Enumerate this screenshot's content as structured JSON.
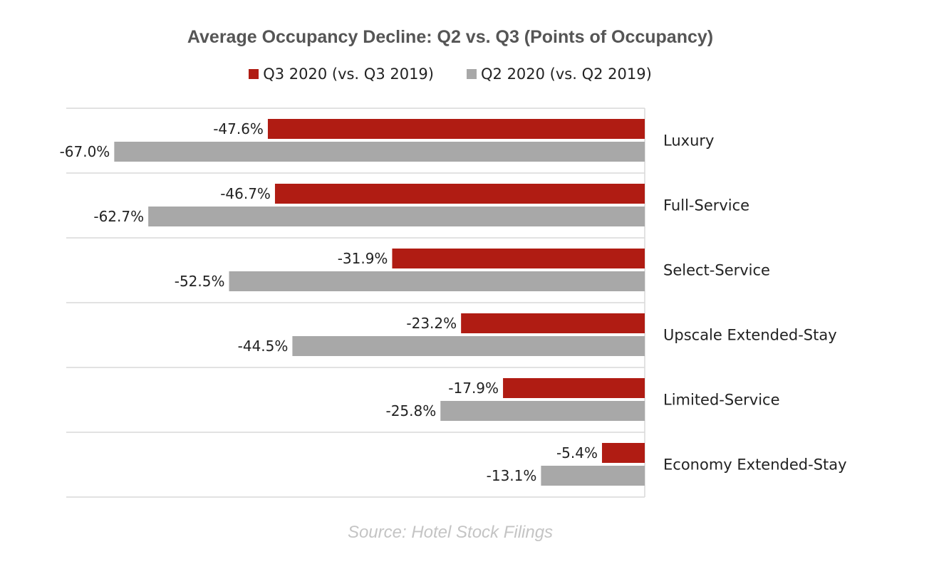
{
  "chart_data": {
    "type": "bar",
    "orientation": "horizontal",
    "title": "Average Occupancy Decline: Q2 vs. Q3 (Points of Occupancy)",
    "categories": [
      "Luxury",
      "Full-Service",
      "Select-Service",
      "Upscale Extended-Stay",
      "Limited-Service",
      "Economy Extended-Stay"
    ],
    "series": [
      {
        "name": "Q3 2020 (vs. Q3 2019)",
        "color": "#b01c13",
        "values": [
          -47.6,
          -46.7,
          -31.9,
          -23.2,
          -17.9,
          -5.4
        ],
        "labels": [
          "-47.6%",
          "-46.7%",
          "-31.9%",
          "-23.2%",
          "-17.9%",
          "-5.4%"
        ]
      },
      {
        "name": "Q2 2020 (vs. Q2 2019)",
        "color": "#a8a8a8",
        "values": [
          -67.0,
          -62.7,
          -52.5,
          -44.5,
          -25.8,
          -13.1
        ],
        "labels": [
          "-67.0%",
          "-62.7%",
          "-52.5%",
          "-44.5%",
          "-25.8%",
          "-13.1%"
        ]
      }
    ],
    "xlim": [
      -70,
      0
    ],
    "grid": true,
    "legend_position": "top"
  },
  "source": "Source: Hotel Stock Filings"
}
